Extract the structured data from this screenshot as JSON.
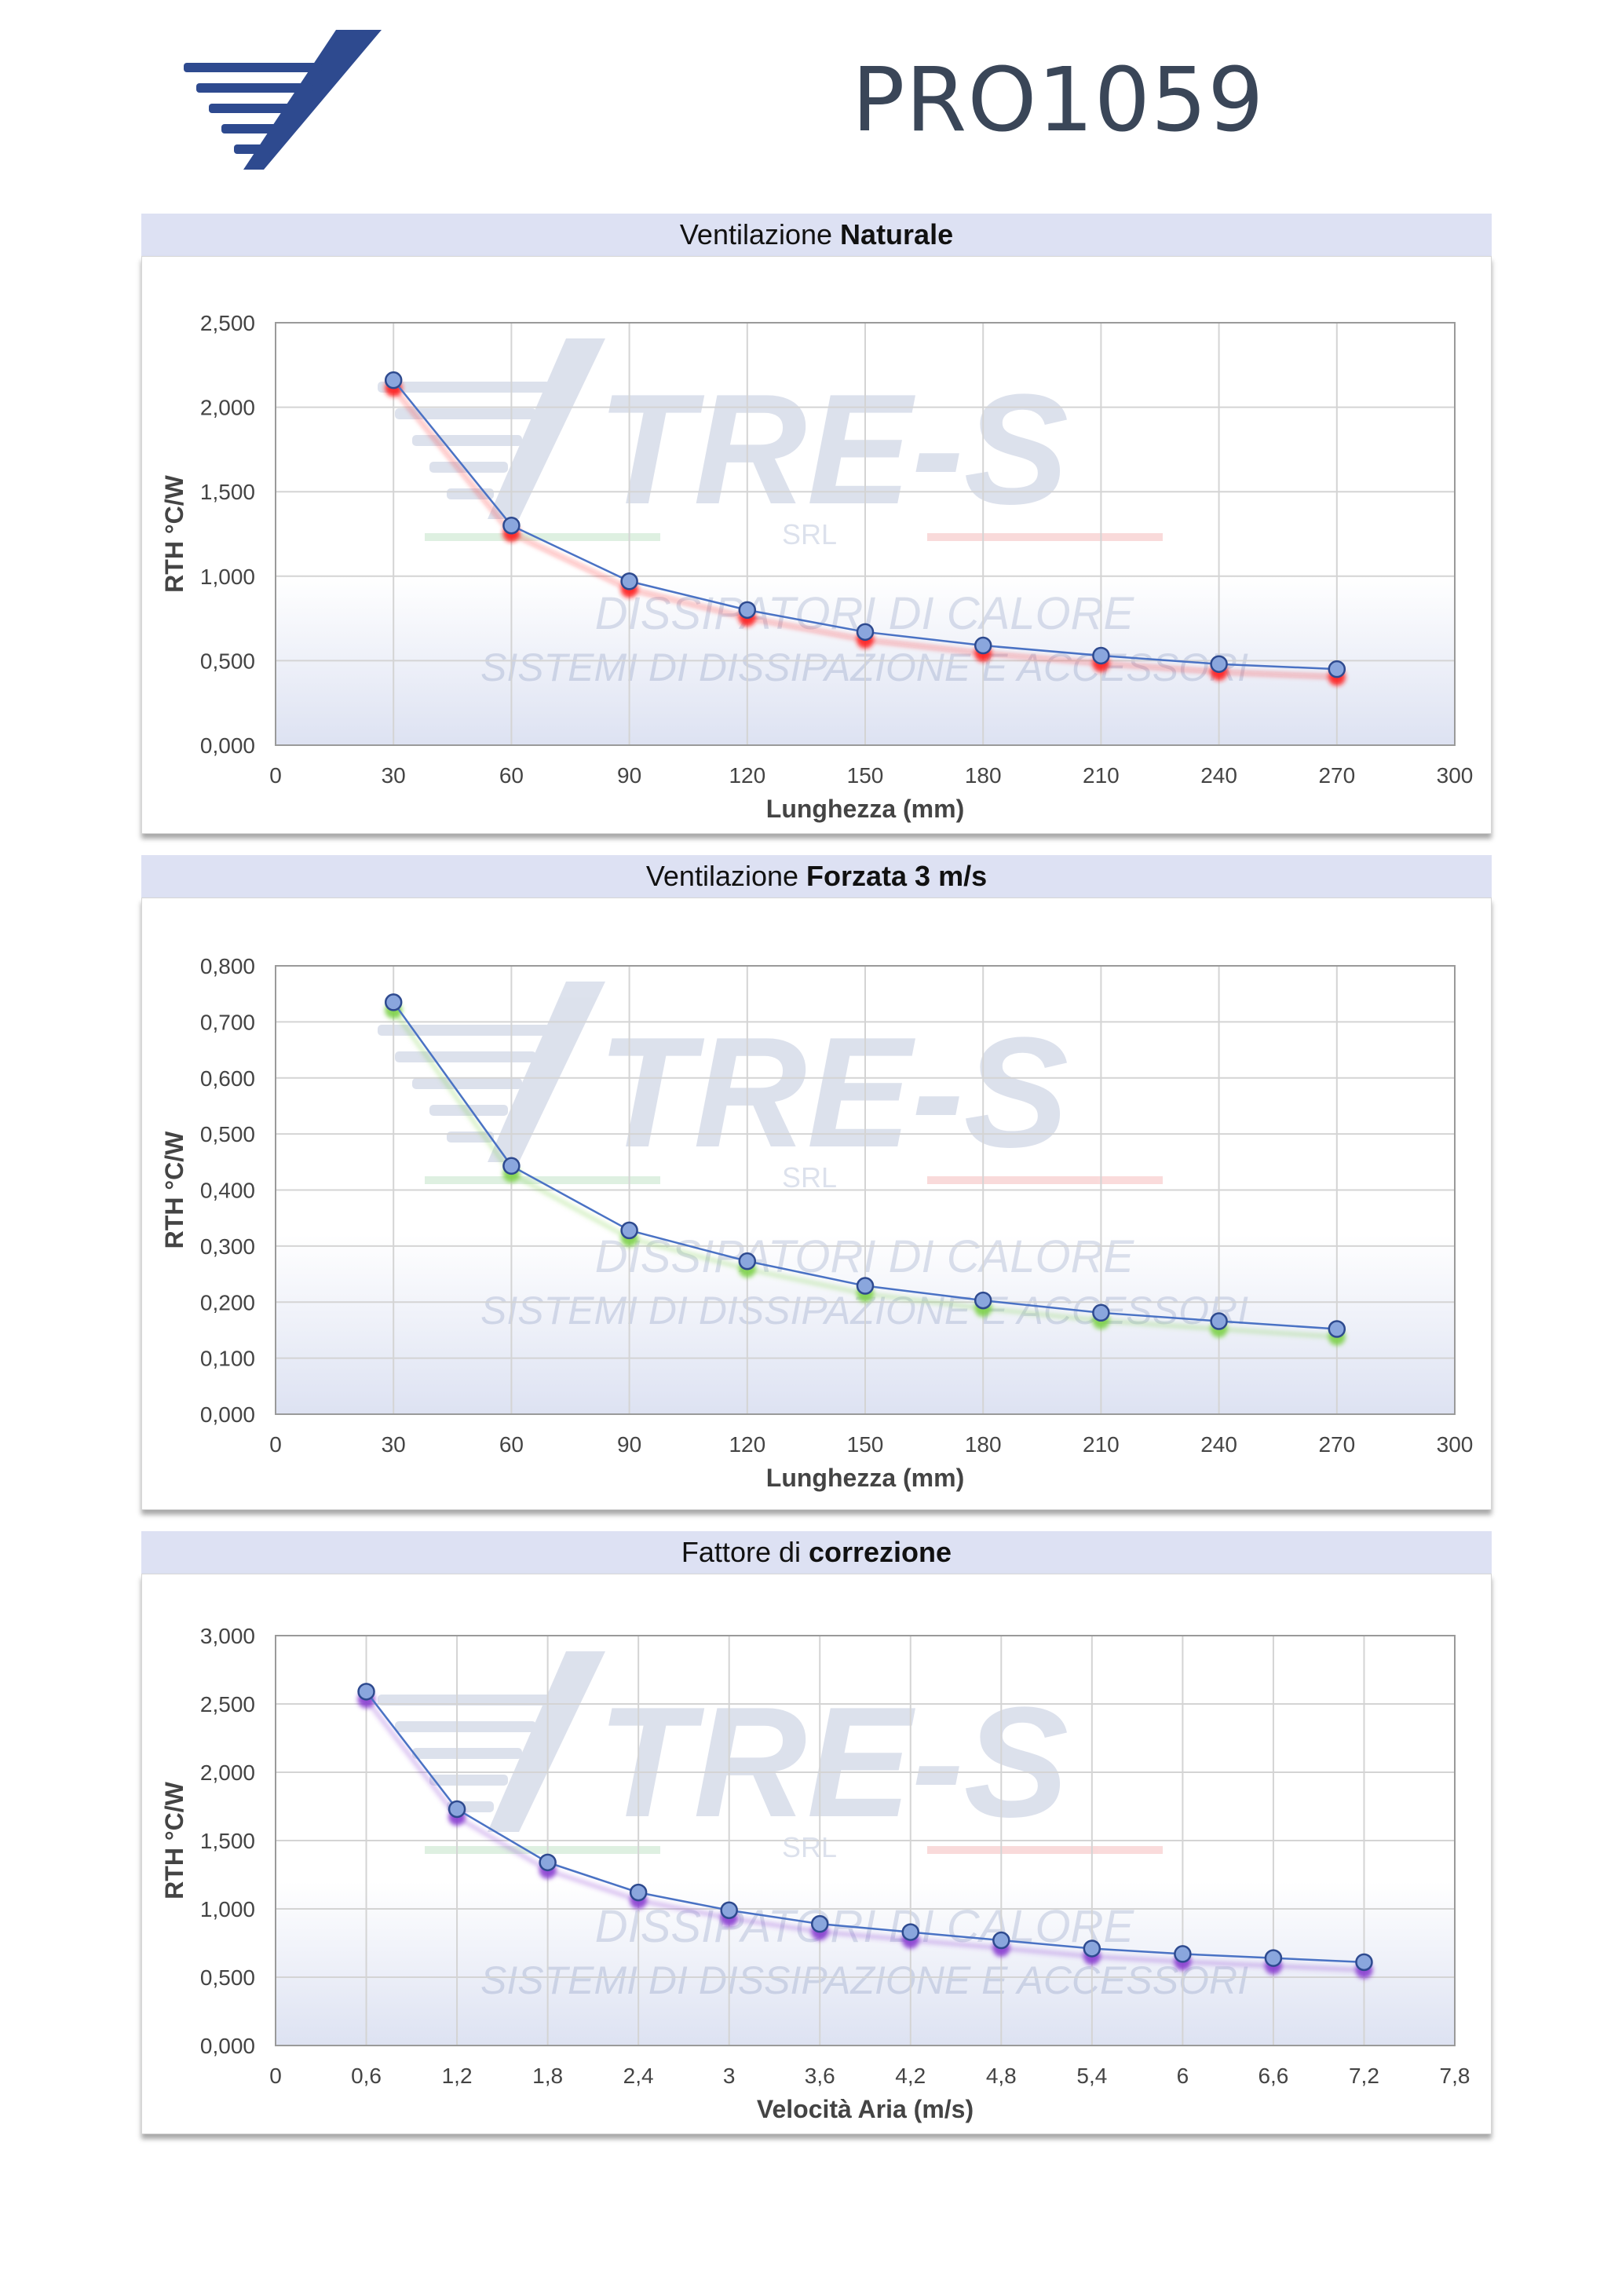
{
  "header": {
    "product_code": "PRO1059",
    "brand_color": "#2e4a8f",
    "logo_icon": "tres-logo-icon"
  },
  "watermark": {
    "brand": "TRE-S",
    "company_type": "SRL",
    "line1": "DISSIPATORI DI CALORE",
    "line2": "SISTEMI DI DISSIPAZIONE E ACCESSORI"
  },
  "colors": {
    "marker": "#8aa6dd",
    "marker_stroke": "#2e4a8f",
    "line": "#4a72c4",
    "panel_title_bg": "#dde1f3"
  },
  "chart_data": [
    {
      "type": "line",
      "title_regular": "Ventilazione ",
      "title_bold": "Naturale",
      "xlabel": "Lunghezza (mm)",
      "ylabel": "RTH °C/W",
      "xlim": [
        0,
        300
      ],
      "ylim": [
        0,
        2.5
      ],
      "x_ticks": [
        0,
        30,
        60,
        90,
        120,
        150,
        180,
        210,
        240,
        270,
        300
      ],
      "x_tick_labels": [
        "0",
        "30",
        "60",
        "90",
        "120",
        "150",
        "180",
        "210",
        "240",
        "270",
        "300"
      ],
      "y_ticks": [
        0,
        0.5,
        1.0,
        1.5,
        2.0,
        2.5
      ],
      "y_tick_labels": [
        "0,000",
        "0,500",
        "1,000",
        "1,500",
        "2,000",
        "2,500"
      ],
      "grid": true,
      "shadow_color": "#ff2020",
      "series": [
        {
          "x": [
            30,
            60,
            90,
            120,
            150,
            180,
            210,
            240,
            270
          ],
          "values": [
            2.16,
            1.3,
            0.97,
            0.8,
            0.67,
            0.59,
            0.53,
            0.48,
            0.45
          ]
        }
      ]
    },
    {
      "type": "line",
      "title_regular": "Ventilazione ",
      "title_bold": "Forzata 3 m/s",
      "xlabel": "Lunghezza (mm)",
      "ylabel": "RTH °C/W",
      "xlim": [
        0,
        300
      ],
      "ylim": [
        0,
        0.8
      ],
      "x_ticks": [
        0,
        30,
        60,
        90,
        120,
        150,
        180,
        210,
        240,
        270,
        300
      ],
      "x_tick_labels": [
        "0",
        "30",
        "60",
        "90",
        "120",
        "150",
        "180",
        "210",
        "240",
        "270",
        "300"
      ],
      "y_ticks": [
        0,
        0.1,
        0.2,
        0.3,
        0.4,
        0.5,
        0.6,
        0.7,
        0.8
      ],
      "y_tick_labels": [
        "0,000",
        "0,100",
        "0,200",
        "0,300",
        "0,400",
        "0,500",
        "0,600",
        "0,700",
        "0,800"
      ],
      "grid": true,
      "shadow_color": "#7ed24a",
      "series": [
        {
          "x": [
            30,
            60,
            90,
            120,
            150,
            180,
            210,
            240,
            270
          ],
          "values": [
            0.735,
            0.443,
            0.328,
            0.273,
            0.229,
            0.203,
            0.181,
            0.166,
            0.152
          ]
        }
      ]
    },
    {
      "type": "line",
      "title_regular": "Fattore di ",
      "title_bold": "correzione",
      "xlabel": "Velocità Aria (m/s)",
      "ylabel": "RTH °C/W",
      "xlim": [
        0,
        7.8
      ],
      "ylim": [
        0,
        3.0
      ],
      "x_ticks": [
        0,
        0.6,
        1.2,
        1.8,
        2.4,
        3,
        3.6,
        4.2,
        4.8,
        5.4,
        6,
        6.6,
        7.2,
        7.8
      ],
      "x_tick_labels": [
        "0",
        "0,6",
        "1,2",
        "1,8",
        "2,4",
        "3",
        "3,6",
        "4,2",
        "4,8",
        "5,4",
        "6",
        "6,6",
        "7,2",
        "7,8"
      ],
      "y_ticks": [
        0,
        0.5,
        1.0,
        1.5,
        2.0,
        2.5,
        3.0
      ],
      "y_tick_labels": [
        "0,000",
        "0,500",
        "1,000",
        "1,500",
        "2,000",
        "2,500",
        "3,000"
      ],
      "grid": true,
      "shadow_color": "#8a3fd0",
      "series": [
        {
          "x": [
            0.6,
            1.2,
            1.8,
            2.4,
            3.0,
            3.6,
            4.2,
            4.8,
            5.4,
            6.0,
            6.6,
            7.2
          ],
          "values": [
            2.59,
            1.73,
            1.34,
            1.12,
            0.99,
            0.89,
            0.83,
            0.77,
            0.71,
            0.67,
            0.64,
            0.61
          ]
        }
      ]
    }
  ]
}
